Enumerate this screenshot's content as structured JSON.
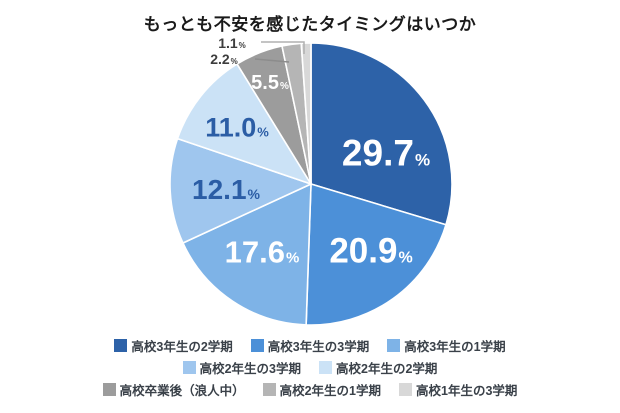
{
  "chart_data": {
    "type": "pie",
    "title": "もっとも不安を感じたタイミングはいつか",
    "value_suffix": "%",
    "start_angle_deg": 0,
    "direction": "clockwise",
    "legend_position": "bottom",
    "slices": [
      {
        "label": "高校3年生の2学期",
        "value": 29.7,
        "value_label": "29.7",
        "color": "#2d62a8",
        "text_color": "#ffffff"
      },
      {
        "label": "高校3年生の3学期",
        "value": 20.9,
        "value_label": "20.9",
        "color": "#4c90d8",
        "text_color": "#ffffff"
      },
      {
        "label": "高校3年生の1学期",
        "value": 17.6,
        "value_label": "17.6",
        "color": "#7eb3e7",
        "text_color": "#ffffff"
      },
      {
        "label": "高校2年生の3学期",
        "value": 12.1,
        "value_label": "12.1",
        "color": "#9fc6ee",
        "text_color": "#2b5da5"
      },
      {
        "label": "高校2年生の2学期",
        "value": 11.0,
        "value_label": "11.0",
        "color": "#cbe2f6",
        "text_color": "#2b5da5"
      },
      {
        "label": "高校卒業後（浪人中）",
        "value": 5.5,
        "value_label": "5.5",
        "color": "#9c9c9c",
        "text_color": "#ffffff"
      },
      {
        "label": "高校2年生の1学期",
        "value": 2.2,
        "value_label": "2.2",
        "color": "#b5b5b5",
        "text_color": "#3d3d3d"
      },
      {
        "label": "高校1年生の3学期",
        "value": 1.1,
        "value_label": "1.1",
        "color": "#d8d8d8",
        "text_color": "#3d3d3d"
      }
    ]
  }
}
